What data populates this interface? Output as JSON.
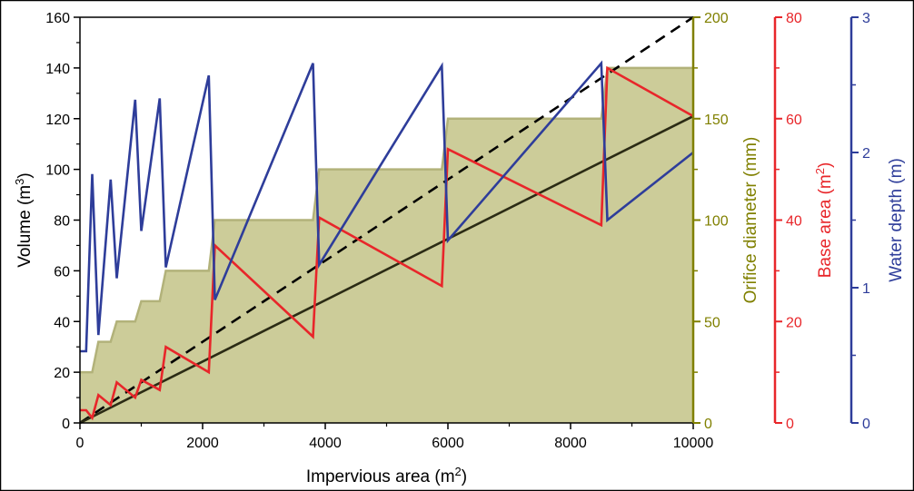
{
  "chart_data": {
    "type": "line",
    "x_axis": {
      "label": "Impervious area (m",
      "label_sup": "2",
      "label_end": ")",
      "range": [
        0,
        10000
      ],
      "ticks": [
        0,
        2000,
        4000,
        6000,
        8000,
        10000
      ],
      "tick_labels": [
        "0",
        "2000",
        "4000",
        "6000",
        "8000",
        "10000"
      ]
    },
    "y_axes": {
      "volume": {
        "label": "Volume (m",
        "label_sup": "3",
        "label_end": ")",
        "range": [
          0,
          160
        ],
        "ticks": [
          0,
          20,
          40,
          60,
          80,
          100,
          120,
          140,
          160
        ],
        "tick_labels": [
          "0",
          "20",
          "40",
          "60",
          "80",
          "100",
          "120",
          "140",
          "160"
        ],
        "color": "#000000"
      },
      "orifice": {
        "label": "Orifice diameter (mm)",
        "range": [
          0,
          200
        ],
        "ticks": [
          0,
          50,
          100,
          150,
          200
        ],
        "tick_labels": [
          "0",
          "50",
          "100",
          "150",
          "200"
        ],
        "color": "#808000"
      },
      "base_area": {
        "label": "Base area (m",
        "label_sup": "2",
        "label_end": ")",
        "range": [
          0,
          80
        ],
        "ticks": [
          0,
          20,
          40,
          60,
          80
        ],
        "tick_labels": [
          "0",
          "20",
          "40",
          "60",
          "80"
        ],
        "color": "#e8262a"
      },
      "water_depth": {
        "label": "Water depth (m)",
        "range": [
          0,
          3
        ],
        "ticks": [
          0,
          1,
          2,
          3
        ],
        "tick_labels": [
          "0",
          "1",
          "2",
          "3"
        ],
        "color": "#2e3d9a"
      }
    },
    "series": [
      {
        "name": "Orifice diameter",
        "axis": "orifice",
        "style": "filled-step",
        "fill": "#cccc99",
        "stroke": "#b2b27a",
        "points": [
          [
            0,
            25
          ],
          [
            200,
            25
          ],
          [
            300,
            40
          ],
          [
            500,
            40
          ],
          [
            600,
            50
          ],
          [
            900,
            50
          ],
          [
            1000,
            60
          ],
          [
            1300,
            60
          ],
          [
            1400,
            75
          ],
          [
            2100,
            75
          ],
          [
            2200,
            100
          ],
          [
            3800,
            100
          ],
          [
            3900,
            125
          ],
          [
            5900,
            125
          ],
          [
            6000,
            150
          ],
          [
            8500,
            150
          ],
          [
            8600,
            175
          ],
          [
            10000,
            175
          ]
        ]
      },
      {
        "name": "Volume (dashed)",
        "axis": "volume",
        "style": "dashed",
        "color": "#000000",
        "points": [
          [
            0,
            0
          ],
          [
            10000,
            160
          ]
        ]
      },
      {
        "name": "Volume (solid)",
        "axis": "volume",
        "style": "solid",
        "color": "#2b2b14",
        "points": [
          [
            0,
            0
          ],
          [
            10000,
            121
          ]
        ]
      },
      {
        "name": "Base area",
        "axis": "base_area",
        "style": "solid",
        "color": "#e8262a",
        "points": [
          [
            0,
            2.5
          ],
          [
            100,
            2.5
          ],
          [
            200,
            1
          ],
          [
            300,
            5.5
          ],
          [
            500,
            3.5
          ],
          [
            600,
            8
          ],
          [
            900,
            5
          ],
          [
            1000,
            8.5
          ],
          [
            1300,
            6.5
          ],
          [
            1400,
            15
          ],
          [
            2100,
            10
          ],
          [
            2200,
            35
          ],
          [
            3800,
            17
          ],
          [
            3900,
            40.5
          ],
          [
            5900,
            27
          ],
          [
            6000,
            54
          ],
          [
            8500,
            39
          ],
          [
            8600,
            70
          ],
          [
            10000,
            60.5
          ]
        ]
      },
      {
        "name": "Water depth",
        "axis": "water_depth",
        "style": "solid",
        "color": "#2e3d9a",
        "points": [
          [
            0,
            0.53
          ],
          [
            100,
            0.53
          ],
          [
            200,
            1.84
          ],
          [
            300,
            0.65
          ],
          [
            500,
            1.8
          ],
          [
            600,
            1.07
          ],
          [
            900,
            2.39
          ],
          [
            1000,
            1.42
          ],
          [
            1300,
            2.4
          ],
          [
            1400,
            1.15
          ],
          [
            2100,
            2.57
          ],
          [
            2200,
            0.91
          ],
          [
            3800,
            2.66
          ],
          [
            3900,
            1.17
          ],
          [
            5900,
            2.64
          ],
          [
            6000,
            1.35
          ],
          [
            8500,
            2.66
          ],
          [
            8600,
            1.5
          ],
          [
            10000,
            2.0
          ]
        ]
      }
    ]
  }
}
